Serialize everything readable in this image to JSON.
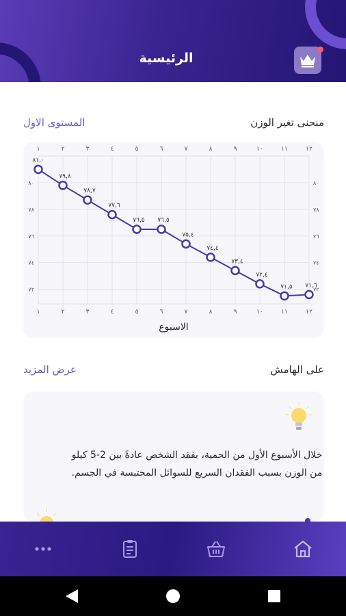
{
  "header": {
    "title": "الرئيسية",
    "logo_icon": "crown-icon",
    "colors": {
      "gradient_start": "#5a3cb7",
      "gradient_end": "#241574"
    }
  },
  "weight_section": {
    "title": "منحنى تغير الوزن",
    "level_label": "المستوى الاول"
  },
  "chart_data": {
    "type": "line",
    "x": [
      1,
      2,
      3,
      4,
      5,
      6,
      7,
      8,
      9,
      10,
      11,
      12
    ],
    "x_tick_labels": [
      "١",
      "٢",
      "٣",
      "٤",
      "٥",
      "٦",
      "٧",
      "٨",
      "٩",
      "١٠",
      "١١",
      "١٢"
    ],
    "y_tick_labels": [
      "٨٠",
      "٧٨",
      "٧٦",
      "٧٤",
      "٧٢"
    ],
    "y_ticks": [
      80,
      78,
      76,
      74,
      72
    ],
    "series": [
      {
        "values": [
          81.0,
          79.8,
          78.7,
          77.6,
          76.5,
          76.5,
          75.4,
          74.4,
          73.4,
          72.4,
          71.5,
          71.6
        ],
        "point_labels": [
          "٨١,٠",
          "٧٩,٨",
          "٧٨,٧",
          "٧٧,٦",
          "٧٦,٥",
          "٧٦,٥",
          "٧٥,٤",
          "٧٤,٤",
          "٧٣,٤",
          "٧٢,٤",
          "٧١,٥",
          "٧١,٦"
        ]
      }
    ],
    "xlabel": "الاسبوع",
    "ylabel": "",
    "ylim": [
      70.9,
      82
    ],
    "xlim": [
      1,
      12
    ],
    "grid": true,
    "line_color": "#4a38a8"
  },
  "notes_section": {
    "title": "على الهامش",
    "more_label": "عرض المزيد",
    "tip_text": "خلال الأسبوع الأول من الحمية، يفقد الشخص عادةً بين 2-5 كيلو من الوزن بسبب الفقدان السريع للسوائل المحتبسة في الجسم.",
    "tip_icon": "lightbulb-icon"
  },
  "bottom_nav": {
    "items": [
      {
        "icon": "more-dots-icon",
        "name": "nav-more"
      },
      {
        "icon": "clipboard-icon",
        "name": "nav-plan"
      },
      {
        "icon": "basket-icon",
        "name": "nav-shop"
      },
      {
        "icon": "home-icon",
        "name": "nav-home"
      }
    ],
    "colors": {
      "icon": "#a99be6"
    }
  },
  "android_nav": {
    "icons": [
      "back-triangle-icon",
      "home-circle-icon",
      "recent-square-icon"
    ]
  }
}
